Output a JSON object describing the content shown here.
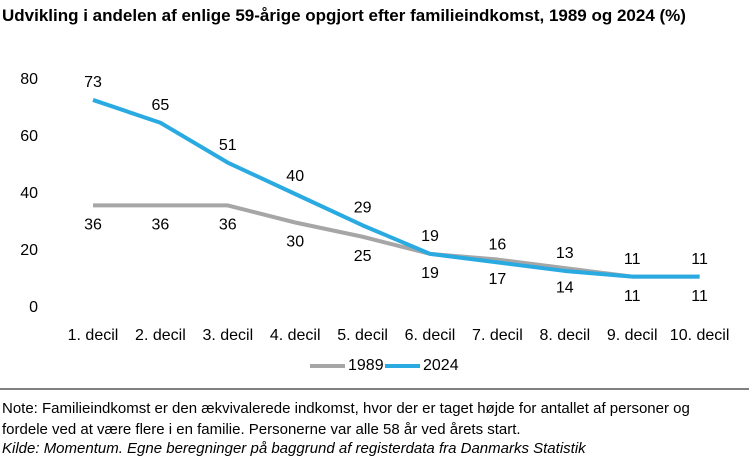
{
  "chart_data": {
    "type": "line",
    "title": "Udvikling i andelen af enlige 59-årige opgjort efter familieindkomst, 1989 og 2024 (%)",
    "categories": [
      "1. decil",
      "2. decil",
      "3. decil",
      "4. decil",
      "5. decil",
      "6. decil",
      "7. decil",
      "8. decil",
      "9. decil",
      "10. decil"
    ],
    "series": [
      {
        "name": "1989",
        "color": "#a6a6a6",
        "values": [
          36,
          36,
          36,
          30,
          25,
          19,
          17,
          14,
          11,
          11
        ]
      },
      {
        "name": "2024",
        "color": "#29aae1",
        "values": [
          73,
          65,
          51,
          40,
          29,
          19,
          16,
          13,
          11,
          11
        ]
      }
    ],
    "ylim": [
      0,
      80
    ],
    "yticks": [
      0,
      20,
      40,
      60,
      80
    ],
    "grid": false,
    "legend": "bottom"
  },
  "note": "Note: Familieindkomst er den ækvivalerede indkomst, hvor der er taget højde for antallet af personer og fordele ved at være flere i en familie. Personerne var alle 58 år ved årets start.",
  "source": "Kilde: Momentum. Egne beregninger på baggrund af registerdata fra Danmarks Statistik"
}
